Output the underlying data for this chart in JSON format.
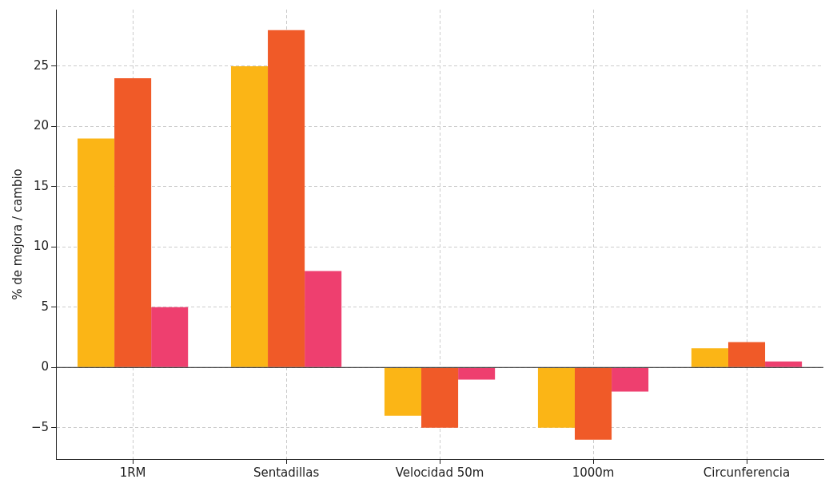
{
  "chart_data": {
    "type": "bar",
    "ylabel": "% de mejora / cambio",
    "categories": [
      "1RM",
      "Sentadillas",
      "Velocidad 50m",
      "1000m",
      "Circunferencia"
    ],
    "series": [
      {
        "color": "#fbb516",
        "values": [
          19,
          25,
          -4,
          -5,
          1.6
        ]
      },
      {
        "color": "#f05a28",
        "values": [
          24,
          28,
          -5,
          -6,
          2.1
        ]
      },
      {
        "color": "#ee3f6f",
        "values": [
          5,
          8,
          -1,
          -2,
          0.5
        ]
      }
    ],
    "ylim": [
      -7.6,
      29.7
    ],
    "yticks": [
      -5,
      0,
      5,
      10,
      15,
      20,
      25
    ],
    "grid": true,
    "legend": false
  }
}
